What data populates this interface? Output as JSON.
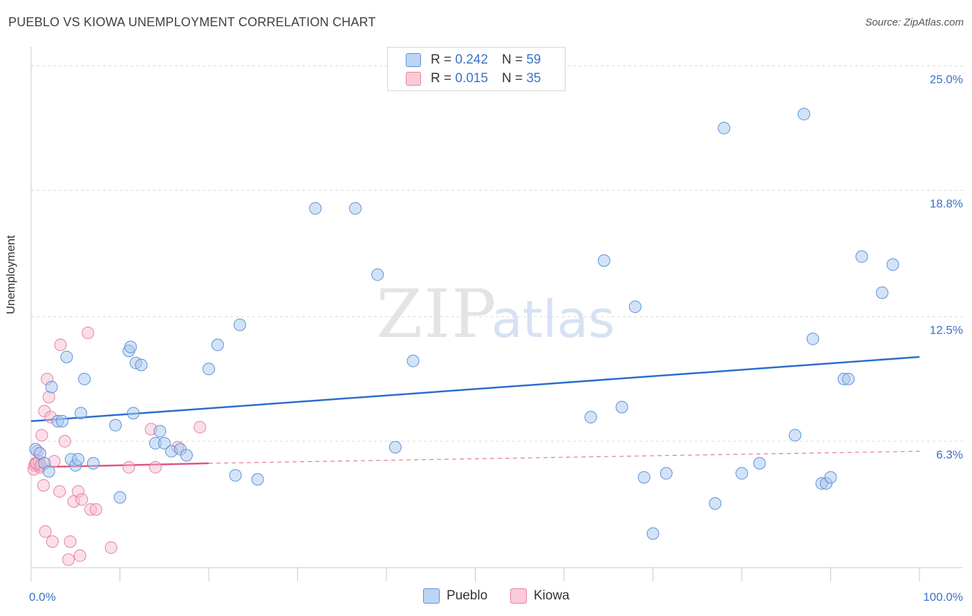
{
  "title": "PUEBLO VS KIOWA UNEMPLOYMENT CORRELATION CHART",
  "source": "Source: ZipAtlas.com",
  "watermark": {
    "zip": "ZIP",
    "atlas": "atlas"
  },
  "legend": [
    {
      "series": "Pueblo",
      "r_label": "R =",
      "r": "0.242",
      "n_label": "N =",
      "n": "59"
    },
    {
      "series": "Kiowa",
      "r_label": "R =",
      "r": "0.015",
      "n_label": "N =",
      "n": "35"
    }
  ],
  "colors": {
    "pueblo_fill": "#a8c8f0",
    "pueblo_stroke": "#5b8fd6",
    "pueblo_line": "#2a6ccf",
    "kiowa_fill": "#f6b9cc",
    "kiowa_stroke": "#e57fa0",
    "kiowa_line": "#e0527f",
    "grid": "#d9d9d9",
    "tick_label": "#3a72c9"
  },
  "chart_data": {
    "type": "scatter",
    "title": "PUEBLO VS KIOWA UNEMPLOYMENT CORRELATION CHART",
    "xlabel": "",
    "ylabel": "Unemployment",
    "xlim": [
      0,
      100
    ],
    "ylim": [
      0,
      25.6
    ],
    "x_tick_labels": [
      "0.0%",
      "100.0%"
    ],
    "y_ticks": [
      6.3,
      12.5,
      18.8,
      25.0
    ],
    "y_tick_labels": [
      "6.3%",
      "12.5%",
      "18.8%",
      "25.0%"
    ],
    "grid": true,
    "legend_position": "bottom",
    "series": [
      {
        "name": "Pueblo",
        "points": [
          [
            0.5,
            5.9
          ],
          [
            1,
            5.7
          ],
          [
            1.5,
            5.2
          ],
          [
            2,
            4.8
          ],
          [
            2.3,
            9.0
          ],
          [
            3,
            7.3
          ],
          [
            3.5,
            7.3
          ],
          [
            4,
            10.5
          ],
          [
            4.5,
            5.4
          ],
          [
            5,
            5.1
          ],
          [
            5.3,
            5.4
          ],
          [
            5.6,
            7.7
          ],
          [
            6,
            9.4
          ],
          [
            7,
            5.2
          ],
          [
            9.5,
            7.1
          ],
          [
            10,
            3.5
          ],
          [
            11,
            10.8
          ],
          [
            11.2,
            11.0
          ],
          [
            11.5,
            7.7
          ],
          [
            11.8,
            10.2
          ],
          [
            12.4,
            10.1
          ],
          [
            14,
            6.2
          ],
          [
            14.5,
            6.8
          ],
          [
            15,
            6.2
          ],
          [
            15.8,
            5.8
          ],
          [
            16.8,
            5.9
          ],
          [
            17.5,
            5.6
          ],
          [
            20,
            9.9
          ],
          [
            21,
            11.1
          ],
          [
            23,
            4.6
          ],
          [
            23.5,
            12.1
          ],
          [
            25.5,
            4.4
          ],
          [
            32,
            17.9
          ],
          [
            36.5,
            17.9
          ],
          [
            39,
            14.6
          ],
          [
            41,
            6.0
          ],
          [
            43,
            10.3
          ],
          [
            63,
            7.5
          ],
          [
            64.5,
            15.3
          ],
          [
            66.5,
            8.0
          ],
          [
            68,
            13.0
          ],
          [
            69,
            4.5
          ],
          [
            70,
            1.7
          ],
          [
            71.5,
            4.7
          ],
          [
            77,
            3.2
          ],
          [
            78,
            21.9
          ],
          [
            80,
            4.7
          ],
          [
            82,
            5.2
          ],
          [
            86,
            6.6
          ],
          [
            87,
            22.6
          ],
          [
            88,
            11.4
          ],
          [
            89,
            4.2
          ],
          [
            89.5,
            4.2
          ],
          [
            90,
            4.5
          ],
          [
            91.5,
            9.4
          ],
          [
            92,
            9.4
          ],
          [
            93.5,
            15.5
          ],
          [
            95.8,
            13.7
          ],
          [
            97,
            15.1
          ]
        ],
        "trend": {
          "x": [
            0,
            100
          ],
          "y": [
            7.3,
            10.5
          ]
        }
      },
      {
        "name": "Kiowa",
        "points": [
          [
            0.3,
            4.9
          ],
          [
            0.5,
            5.2
          ],
          [
            0.7,
            5.8
          ],
          [
            1,
            5.0
          ],
          [
            1.2,
            6.6
          ],
          [
            1.4,
            4.1
          ],
          [
            1.5,
            7.8
          ],
          [
            1.6,
            1.8
          ],
          [
            1.8,
            9.4
          ],
          [
            2,
            8.5
          ],
          [
            2.2,
            7.5
          ],
          [
            2.4,
            1.3
          ],
          [
            2.6,
            5.3
          ],
          [
            3.2,
            3.8
          ],
          [
            3.3,
            11.1
          ],
          [
            3.8,
            6.3
          ],
          [
            4.2,
            0.4
          ],
          [
            4.4,
            1.3
          ],
          [
            4.8,
            3.3
          ],
          [
            5.3,
            3.8
          ],
          [
            5.5,
            0.6
          ],
          [
            5.7,
            3.4
          ],
          [
            6.4,
            11.7
          ],
          [
            6.7,
            2.9
          ],
          [
            7.3,
            2.9
          ],
          [
            9,
            1.0
          ],
          [
            11,
            5.0
          ],
          [
            13.5,
            6.9
          ],
          [
            14,
            5.0
          ],
          [
            16.5,
            6.0
          ],
          [
            19,
            7.0
          ],
          [
            0.4,
            5.1
          ],
          [
            0.9,
            5.3
          ],
          [
            0.6,
            5.2
          ],
          [
            1.1,
            5.1
          ]
        ],
        "trend_solid": {
          "x": [
            0,
            20
          ],
          "y": [
            5.0,
            5.2
          ]
        },
        "trend_dashed": {
          "x": [
            20,
            100
          ],
          "y": [
            5.2,
            5.8
          ]
        }
      }
    ]
  }
}
